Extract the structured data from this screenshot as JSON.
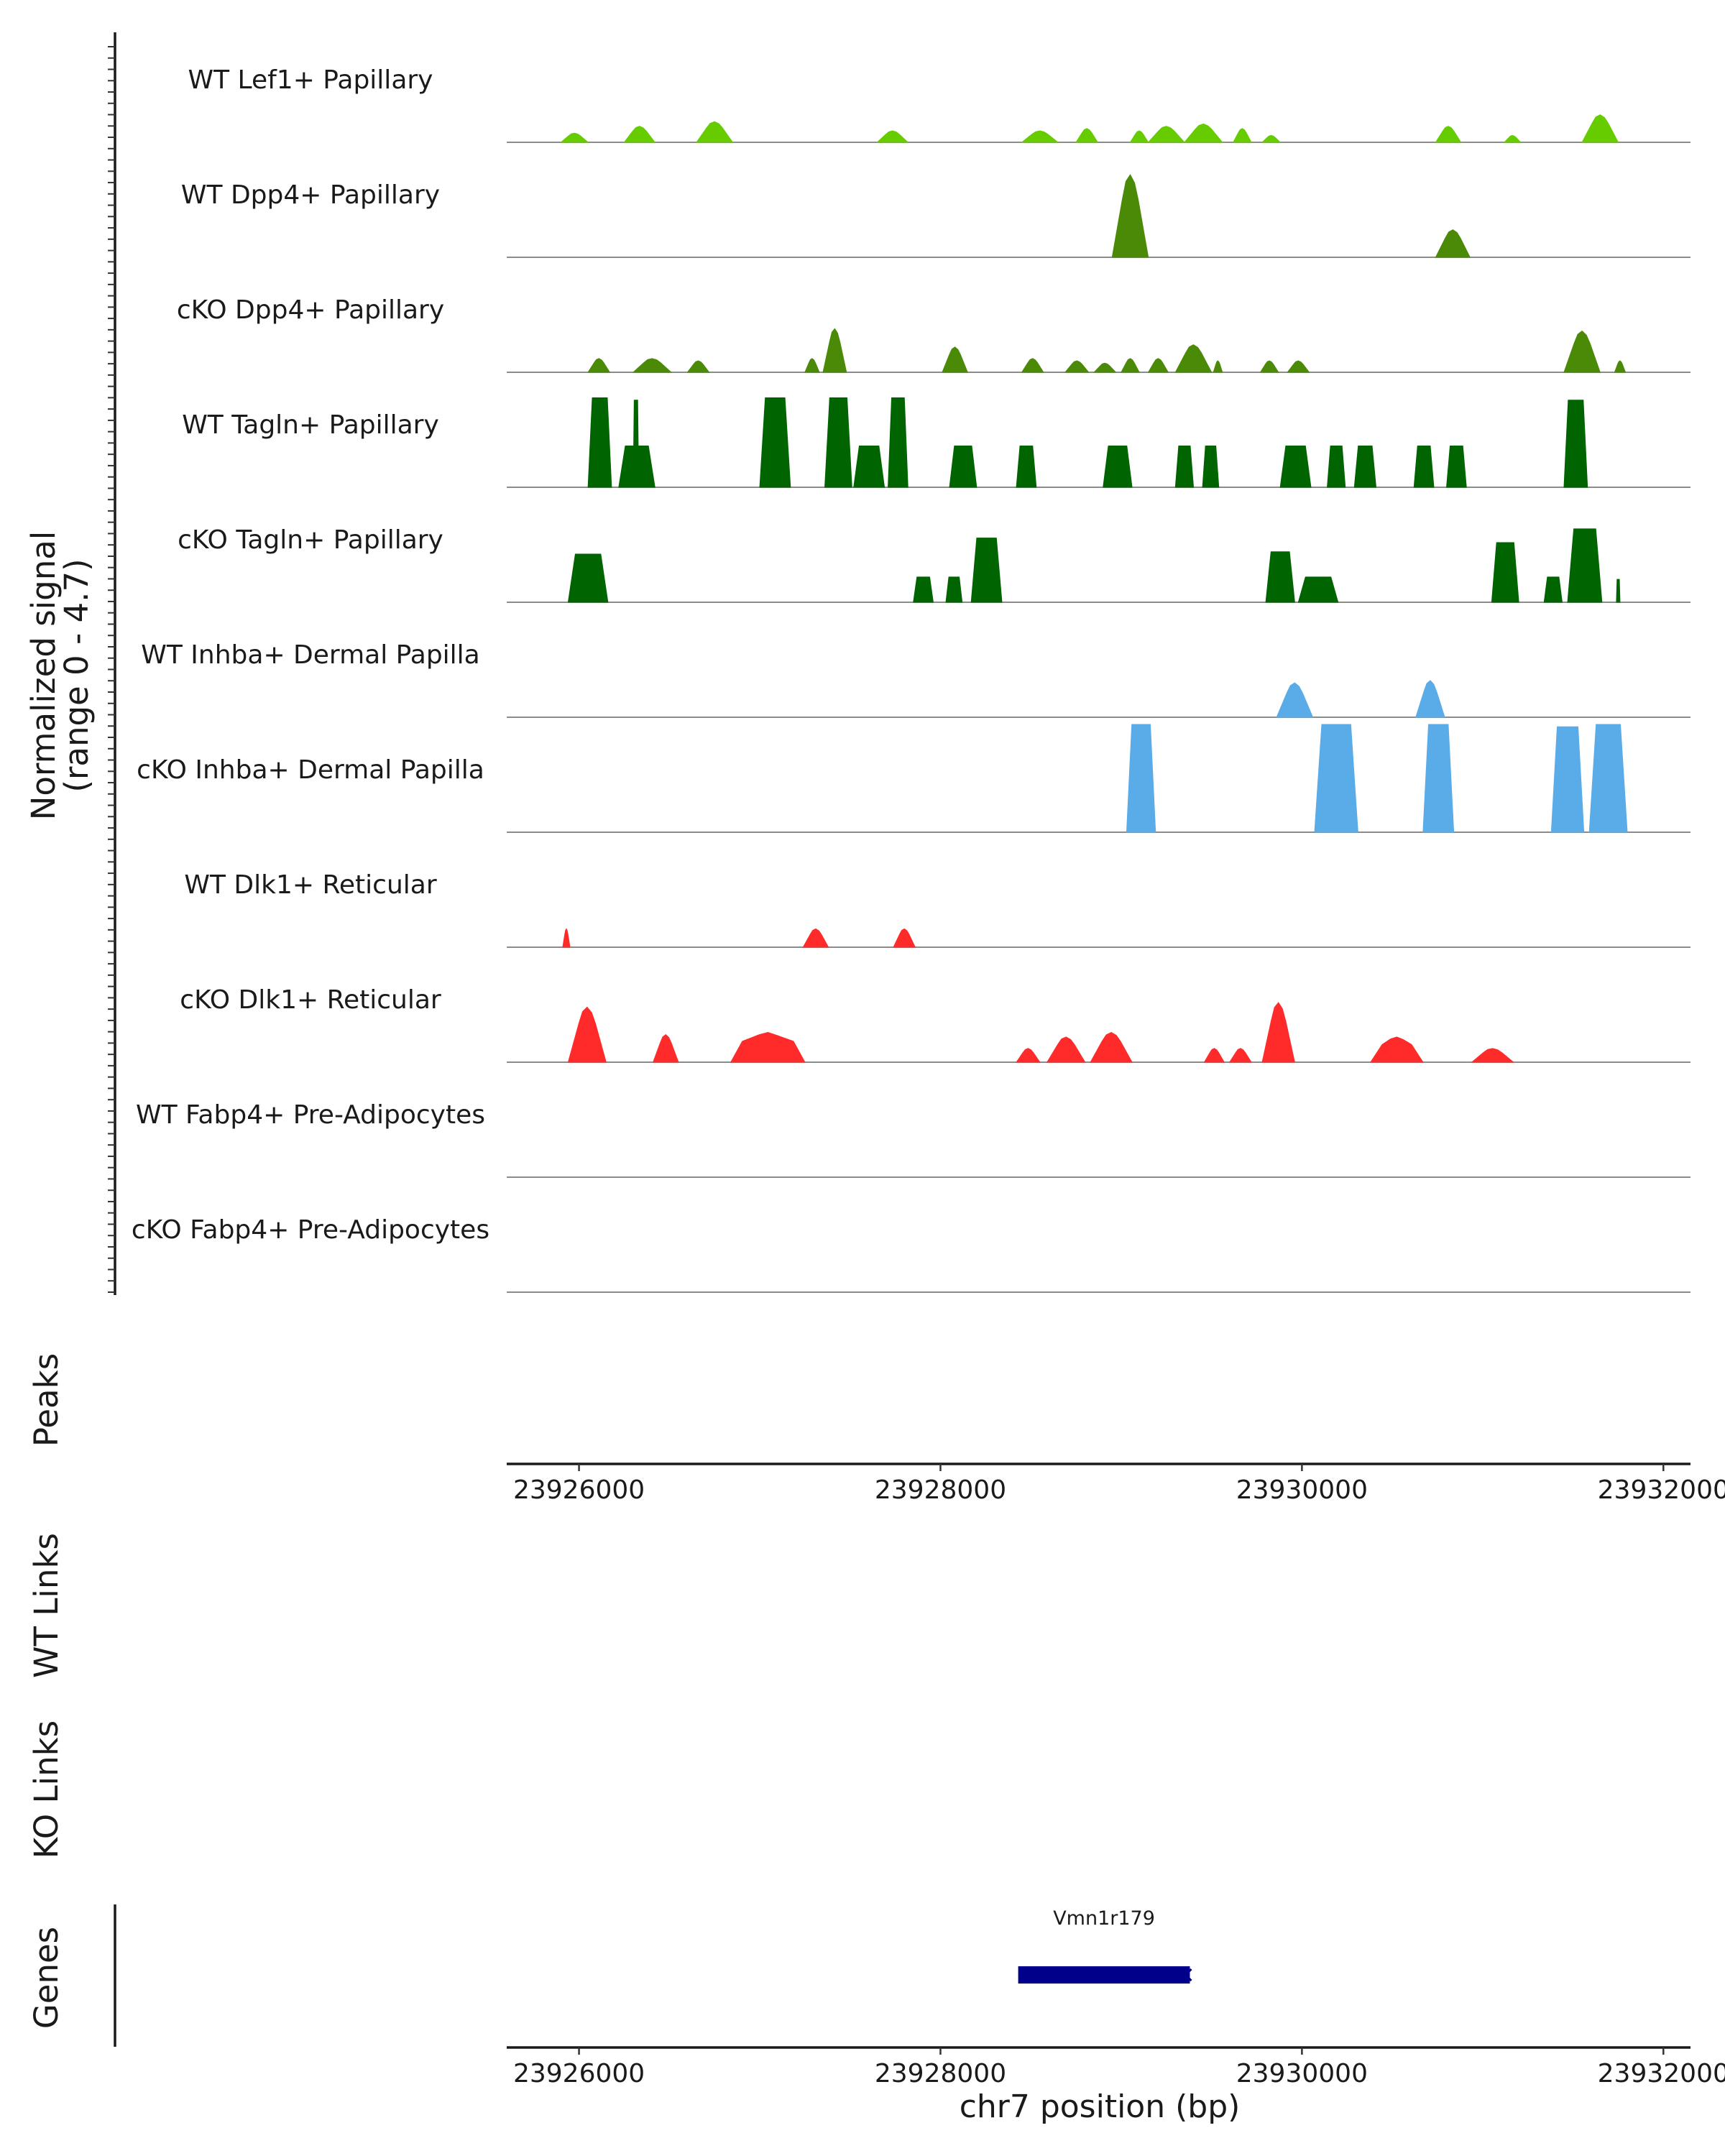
{
  "chart_data": {
    "type": "area",
    "title": "",
    "coverage": {
      "ylabel_line1": "Normalized signal",
      "ylabel_line2": "(range 0 - 4.7)",
      "ylim": [
        0,
        4.7
      ],
      "x_range": [
        23925600,
        23932150
      ],
      "tracks": [
        {
          "label": "WT Lef1+ Papillary",
          "color": "#66cc00",
          "kind": "smooth",
          "regions": [
            [
              23925900,
              23926050,
              0.4
            ],
            [
              23926250,
              23926420,
              0.7
            ],
            [
              23926650,
              23926850,
              0.9
            ],
            [
              23927650,
              23927820,
              0.5
            ],
            [
              23928450,
              23928650,
              0.5
            ],
            [
              23928750,
              23928870,
              0.6
            ],
            [
              23929050,
              23929150,
              0.5
            ],
            [
              23929150,
              23929350,
              0.7
            ],
            [
              23929350,
              23929560,
              0.8
            ],
            [
              23929620,
              23929720,
              0.6
            ],
            [
              23929780,
              23929880,
              0.3
            ],
            [
              23930740,
              23930880,
              0.7
            ],
            [
              23931120,
              23931210,
              0.3
            ],
            [
              23931550,
              23931750,
              1.2
            ]
          ]
        },
        {
          "label": "WT Dpp4+ Papillary",
          "color": "#4a8a06",
          "kind": "smooth",
          "regions": [
            [
              23928950,
              23929150,
              3.6
            ],
            [
              23930740,
              23930930,
              1.2
            ]
          ]
        },
        {
          "label": "cKO Dpp4+ Papillary",
          "color": "#4a8a06",
          "kind": "smooth",
          "regions": [
            [
              23926050,
              23926170,
              0.6
            ],
            [
              23926300,
              23926510,
              0.6
            ],
            [
              23926600,
              23926720,
              0.5
            ],
            [
              23927250,
              23927330,
              0.6
            ],
            [
              23927350,
              23927480,
              1.9
            ],
            [
              23928010,
              23928150,
              1.1
            ],
            [
              23928450,
              23928570,
              0.6
            ],
            [
              23928690,
              23928820,
              0.5
            ],
            [
              23928850,
              23928970,
              0.4
            ],
            [
              23929000,
              23929100,
              0.6
            ],
            [
              23929150,
              23929260,
              0.6
            ],
            [
              23929300,
              23929500,
              1.2
            ],
            [
              23929510,
              23929560,
              0.5
            ],
            [
              23929770,
              23929870,
              0.5
            ],
            [
              23929920,
              23930040,
              0.5
            ],
            [
              23931450,
              23931650,
              1.8
            ],
            [
              23931730,
              23931790,
              0.5
            ]
          ]
        },
        {
          "label": "WT Tagln+ Papillary",
          "color": "#006400",
          "kind": "block",
          "regions": [
            [
              23926050,
              23926180,
              3.9
            ],
            [
              23926220,
              23926420,
              1.8
            ],
            [
              23926300,
              23926330,
              3.8
            ],
            [
              23927000,
              23927170,
              3.9
            ],
            [
              23927360,
              23927510,
              3.9
            ],
            [
              23927520,
              23927690,
              1.8
            ],
            [
              23927710,
              23927820,
              3.9
            ],
            [
              23928050,
              23928200,
              1.8
            ],
            [
              23928420,
              23928530,
              1.8
            ],
            [
              23928900,
              23929060,
              1.8
            ],
            [
              23929300,
              23929400,
              1.8
            ],
            [
              23929450,
              23929540,
              1.8
            ],
            [
              23929880,
              23930050,
              1.8
            ],
            [
              23930140,
              23930240,
              1.8
            ],
            [
              23930290,
              23930410,
              1.8
            ],
            [
              23930620,
              23930730,
              1.8
            ],
            [
              23930800,
              23930910,
              1.8
            ],
            [
              23931450,
              23931580,
              3.8
            ]
          ]
        },
        {
          "label": "cKO Tagln+ Papillary",
          "color": "#006400",
          "kind": "block",
          "regions": [
            [
              23925940,
              23926160,
              2.1
            ],
            [
              23927850,
              23927960,
              1.1
            ],
            [
              23928030,
              23928120,
              1.1
            ],
            [
              23928170,
              23928340,
              2.8
            ],
            [
              23929800,
              23929960,
              2.2
            ],
            [
              23929980,
              23930200,
              1.1
            ],
            [
              23931050,
              23931200,
              2.6
            ],
            [
              23931340,
              23931440,
              1.1
            ],
            [
              23931470,
              23931660,
              3.2
            ],
            [
              23931740,
              23931760,
              1.0
            ]
          ]
        },
        {
          "label": "WT Inhba+ Dermal Papilla",
          "color": "#5aace8",
          "kind": "smooth",
          "regions": [
            [
              23929860,
              23930060,
              1.5
            ],
            [
              23930630,
              23930790,
              1.6
            ]
          ]
        },
        {
          "label": "cKO Inhba+ Dermal Papilla",
          "color": "#5aace8",
          "kind": "block",
          "regions": [
            [
              23929030,
              23929190,
              4.7
            ],
            [
              23930070,
              23930310,
              4.7
            ],
            [
              23930670,
              23930840,
              4.7
            ],
            [
              23931380,
              23931560,
              4.6
            ],
            [
              23931590,
              23931800,
              4.7
            ]
          ]
        },
        {
          "label": "WT Dlk1+ Reticular",
          "color": "#ff2a2a",
          "kind": "smooth",
          "regions": [
            [
              23925910,
              23925950,
              0.8
            ],
            [
              23927240,
              23927380,
              0.8
            ],
            [
              23927740,
              23927860,
              0.8
            ]
          ]
        },
        {
          "label": "cKO Dlk1+ Reticular",
          "color": "#ff2a2a",
          "kind": "smooth",
          "regions": [
            [
              23925940,
              23926150,
              2.4
            ],
            [
              23926410,
              23926550,
              1.2
            ],
            [
              23926840,
              23927250,
              1.3
            ],
            [
              23928420,
              23928550,
              0.6
            ],
            [
              23928590,
              23928800,
              1.1
            ],
            [
              23928830,
              23929060,
              1.3
            ],
            [
              23929460,
              23929570,
              0.6
            ],
            [
              23929600,
              23929720,
              0.6
            ],
            [
              23929780,
              23929960,
              2.6
            ],
            [
              23930380,
              23930670,
              1.1
            ],
            [
              23930940,
              23931170,
              0.6
            ]
          ]
        },
        {
          "label": "WT Fabp4+ Pre-Adipocytes",
          "color": "#888888",
          "kind": "smooth",
          "regions": []
        },
        {
          "label": "cKO Fabp4+ Pre-Adipocytes",
          "color": "#888888",
          "kind": "smooth",
          "regions": []
        }
      ]
    },
    "peaks": {
      "ylabel": "Peaks",
      "regions": []
    },
    "wt_links": {
      "ylabel": "WT Links",
      "links": []
    },
    "ko_links": {
      "ylabel": "KO Links",
      "links": []
    },
    "genes": {
      "ylabel": "Genes",
      "items": [
        {
          "name": "Vmn1r179",
          "start": 23928430,
          "end": 23929380,
          "strand": "-",
          "color": "#00008b"
        }
      ]
    },
    "x_axis": {
      "ticks": [
        23926000,
        23928000,
        23930000,
        23932000
      ],
      "tick_labels": [
        "23926000",
        "23928000",
        "23930000",
        "23932000"
      ],
      "xlabel": "chr7 position (bp)"
    }
  }
}
